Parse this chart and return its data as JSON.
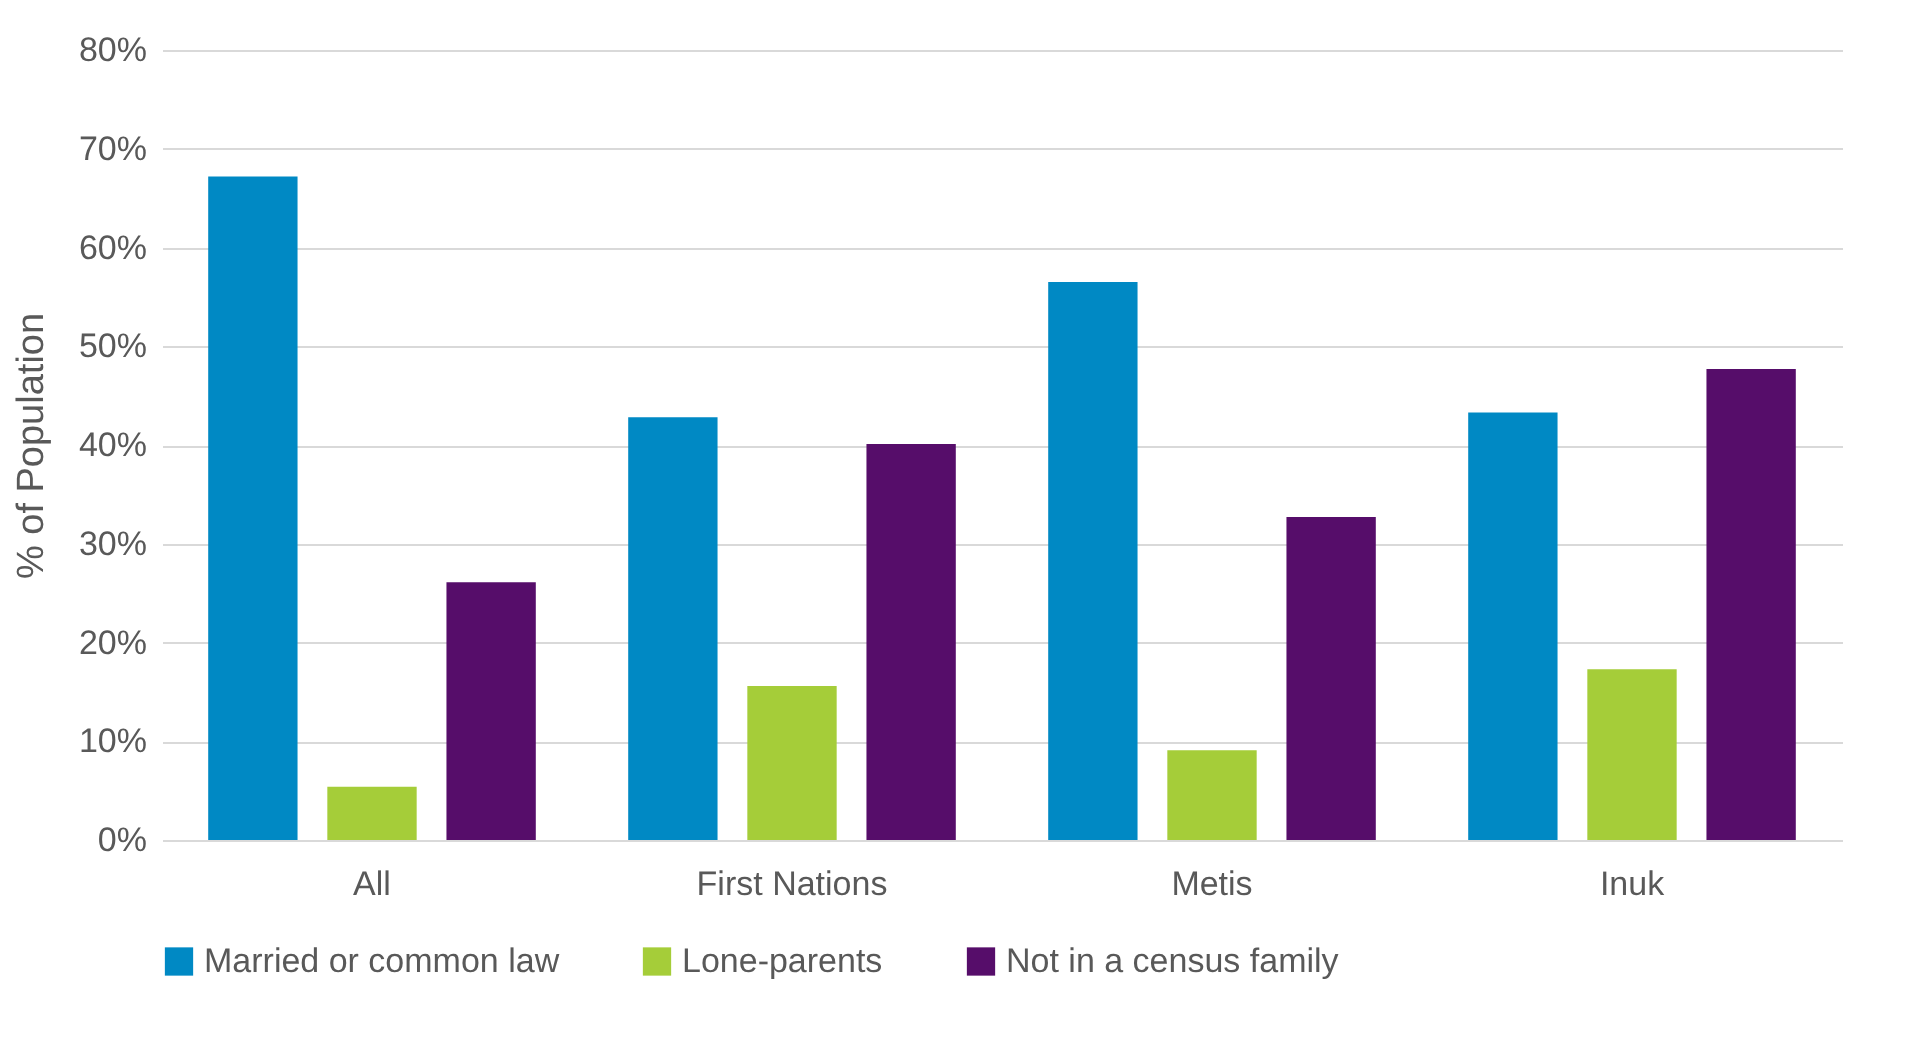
{
  "chart_data": {
    "type": "bar",
    "ylabel": "% of Population",
    "categories": [
      "All",
      "First Nations",
      "Metis",
      "Inuk"
    ],
    "series": [
      {
        "name": "Married or common law",
        "color": "#0089c4",
        "values": [
          67.2,
          42.8,
          56.5,
          43.3
        ]
      },
      {
        "name": "Lone-parents",
        "color": "#a5cd39",
        "values": [
          5.4,
          15.6,
          9.1,
          17.3
        ]
      },
      {
        "name": "Not in a census family",
        "color": "#560d6a",
        "values": [
          26.1,
          40.1,
          32.7,
          47.7
        ]
      }
    ],
    "ylim": [
      0,
      80
    ],
    "yticks": [
      {
        "value": 0,
        "label": "0%"
      },
      {
        "value": 10,
        "label": "10%"
      },
      {
        "value": 20,
        "label": "20%"
      },
      {
        "value": 30,
        "label": "30%"
      },
      {
        "value": 40,
        "label": "40%"
      },
      {
        "value": 50,
        "label": "50%"
      },
      {
        "value": 60,
        "label": "60%"
      },
      {
        "value": 70,
        "label": "70%"
      },
      {
        "value": 80,
        "label": "80%"
      }
    ],
    "grid": "y",
    "legend": "bottom"
  }
}
